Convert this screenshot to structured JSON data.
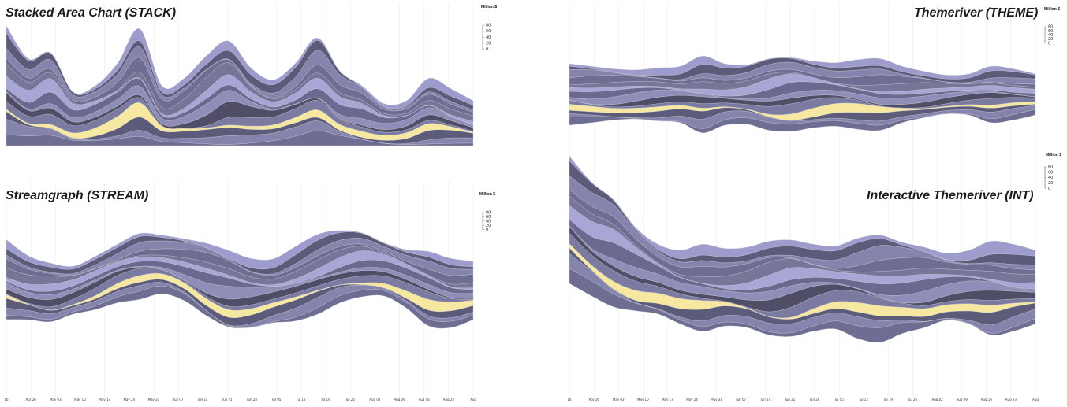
{
  "page_name": "streamgraph-comparison-figure",
  "colors": {
    "background": "#ffffff",
    "highlight": "#f6e7a1",
    "layer_palette": [
      "#6e6d92",
      "#8584ad",
      "#5c5b7a",
      "#9d9ccd",
      "#7b7aa1",
      "#4f4e66",
      "#8f8eb9",
      "#6a6990",
      "#a7a6d4",
      "#777699"
    ],
    "gridline": "#ececf2",
    "layer_stroke": "#c9c9d6"
  },
  "shared": {
    "unit_label": "Million $",
    "y_ticks": [
      0,
      20,
      40,
      60,
      80
    ],
    "date_labels": [
      "16",
      "Apr 26",
      "May 03",
      "May 10",
      "May 17",
      "May 24",
      "May 31",
      "Jun 07",
      "Jun 14",
      "Jun 21",
      "Jun 28",
      "Jul 05",
      "Jul 12",
      "Jul 19",
      "Jul 26",
      "Aug 02",
      "Aug 09",
      "Aug 16",
      "Aug 23",
      "Aug"
    ]
  },
  "chart_data": [
    {
      "type": "area",
      "title": "Stacked Area Chart (STACK)",
      "baseline": "zero",
      "unit": "Million $",
      "y_ticks": [
        0,
        20,
        40,
        60,
        80
      ],
      "x_tick_labels": [],
      "highlight_layer": 3,
      "totals": [
        80,
        58,
        62,
        36,
        40,
        55,
        78,
        40,
        45,
        60,
        70,
        52,
        44,
        55,
        72,
        50,
        40,
        28,
        30,
        45,
        38,
        30
      ],
      "layer_count": 14
    },
    {
      "type": "area",
      "title": "Themeriver (THEME)",
      "baseline": "symmetric",
      "unit": "Million $",
      "y_ticks": [
        0,
        20,
        40,
        60,
        80
      ],
      "x_tick_labels": [],
      "highlight_layer": 3,
      "totals": [
        60,
        55,
        50,
        48,
        52,
        55,
        75,
        60,
        58,
        70,
        72,
        65,
        62,
        68,
        70,
        55,
        45,
        38,
        40,
        55,
        50,
        40
      ],
      "layer_count": 14
    },
    {
      "type": "area",
      "title": "Streamgraph (STREAM)",
      "baseline": "wiggle",
      "unit": "Million $",
      "y_ticks": [
        0,
        20,
        40,
        60,
        80
      ],
      "x_tick_labels": [
        "16",
        "Apr 26",
        "May 03",
        "May 10",
        "May 17",
        "May 24",
        "May 31",
        "Jun 07",
        "Jun 14",
        "Jun 21",
        "Jun 28",
        "Jul 05",
        "Jul 12",
        "Jul 19",
        "Jul 26",
        "Aug 02",
        "Aug 09",
        "Aug 16",
        "Aug 23",
        "Aug"
      ],
      "highlight_layer": 3,
      "totals": [
        75,
        60,
        55,
        45,
        50,
        55,
        62,
        55,
        58,
        68,
        72,
        65,
        60,
        70,
        75,
        68,
        60,
        50,
        55,
        70,
        65,
        55
      ],
      "layer_count": 14
    },
    {
      "type": "area",
      "title": "Interactive Themeriver (INT)",
      "baseline": "split",
      "unit": "Million $",
      "y_ticks": [
        0,
        20,
        40,
        60,
        80
      ],
      "x_tick_labels": [
        "16",
        "Apr 26",
        "May 03",
        "May 10",
        "May 17",
        "May 24",
        "May 31",
        "Jun 07",
        "Jun 14",
        "Jun 21",
        "Jun 28",
        "Jul 05",
        "Jul 12",
        "Jul 19",
        "Jul 26",
        "Aug 02",
        "Aug 09",
        "Aug 16",
        "Aug 23",
        "Aug"
      ],
      "highlight_layer": 3,
      "totals": [
        95,
        85,
        80,
        62,
        52,
        55,
        65,
        58,
        60,
        70,
        72,
        65,
        62,
        75,
        80,
        68,
        60,
        50,
        55,
        70,
        65,
        55
      ],
      "layer_count": 14
    }
  ]
}
